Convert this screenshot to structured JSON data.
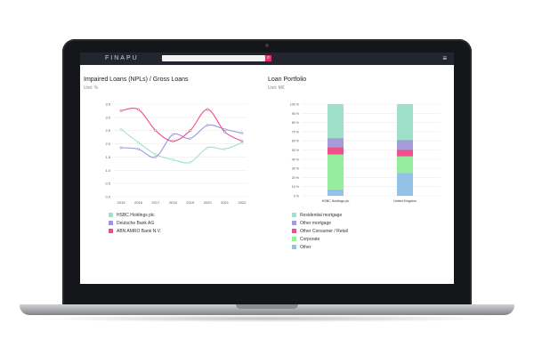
{
  "app": {
    "logo": "FINAPU"
  },
  "search": {
    "placeholder": ""
  },
  "left_panel": {
    "title": "Impaired Loans (NPLs) / Gross Loans",
    "unit": "Unit: %"
  },
  "right_panel": {
    "title": "Loan Portfolio",
    "unit": "Unit: M€"
  },
  "chart_data": [
    {
      "type": "line",
      "title": "Impaired Loans (NPLs) / Gross Loans",
      "x": [
        "2015",
        "2016",
        "2017",
        "2018",
        "2019",
        "2020",
        "2021",
        "2022"
      ],
      "ylim": [
        0,
        3.5
      ],
      "yticks": [
        "0.0",
        "0.5",
        "1.0",
        "1.5",
        "2.0",
        "2.5",
        "3.0",
        "3.5"
      ],
      "series": [
        {
          "name": "HSBC Holdings plc",
          "color": "#9ee0c9",
          "values": [
            2.55,
            2.05,
            1.6,
            1.4,
            1.3,
            1.85,
            1.8,
            2.05
          ]
        },
        {
          "name": "Deutsche Bank AG",
          "color": "#9b96d4",
          "values": [
            1.85,
            1.8,
            1.5,
            2.35,
            2.2,
            2.7,
            2.55,
            2.4
          ]
        },
        {
          "name": "ABN AMRO Bank N.V.",
          "color": "#f0508a",
          "values": [
            3.25,
            3.3,
            2.5,
            2.1,
            2.5,
            3.3,
            2.45,
            2.1
          ]
        }
      ],
      "grid": true,
      "legend": "bottom-left"
    },
    {
      "type": "bar",
      "stacked": true,
      "title": "Loan Portfolio",
      "categories": [
        "HSBC Holdings plc",
        "United Kingdom"
      ],
      "ylim": [
        0,
        100
      ],
      "yticks": [
        "0 %",
        "10 %",
        "20 %",
        "30 %",
        "40 %",
        "50 %",
        "60 %",
        "70 %",
        "80 %",
        "90 %",
        "100 %"
      ],
      "series": [
        {
          "name": "Other",
          "color": "#94c2e6",
          "values": [
            7,
            25
          ]
        },
        {
          "name": "Corporate",
          "color": "#94ee9e",
          "values": [
            38,
            18
          ]
        },
        {
          "name": "Other Consumer / Retail",
          "color": "#f0508a",
          "values": [
            8,
            7
          ]
        },
        {
          "name": "Other mortgage",
          "color": "#a59bd9",
          "values": [
            10,
            11
          ]
        },
        {
          "name": "Residential mortgage",
          "color": "#9ee0c9",
          "values": [
            37,
            39
          ]
        }
      ],
      "legend_order": [
        "Residential mortgage",
        "Other mortgage",
        "Other Consumer / Retail",
        "Corporate",
        "Other"
      ],
      "grid": true,
      "legend": "bottom-left"
    }
  ]
}
